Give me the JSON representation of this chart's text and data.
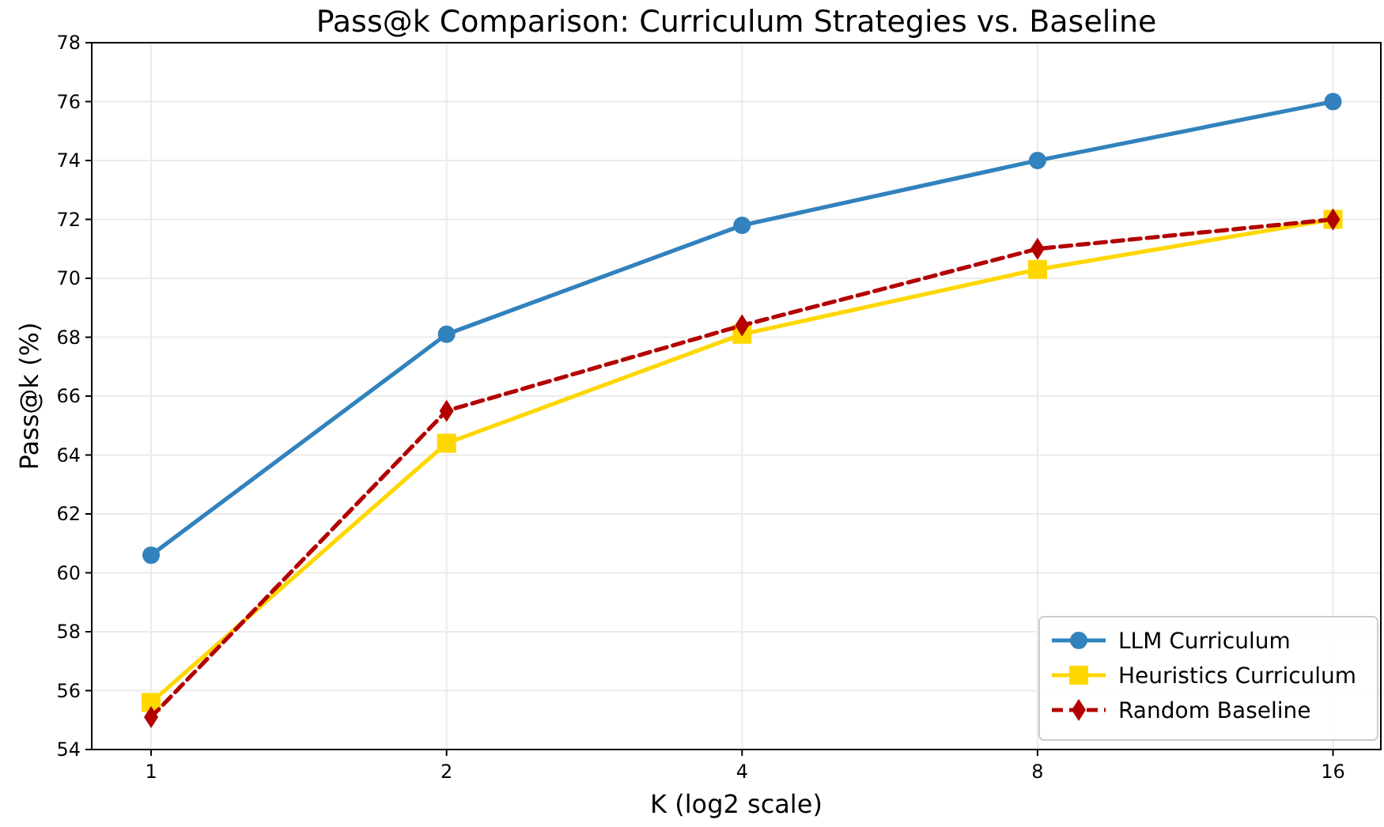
{
  "chart_data": {
    "type": "line",
    "title": "Pass@k Comparison: Curriculum Strategies vs. Baseline",
    "xlabel": "K (log2 scale)",
    "ylabel": "Pass@k (%)",
    "log": "x",
    "x": [
      1,
      2,
      4,
      8,
      16
    ],
    "xlim": [
      0.87,
      17.9
    ],
    "xticks": [
      1,
      2,
      4,
      8,
      16
    ],
    "ylim": [
      54,
      78
    ],
    "yticks": [
      54,
      56,
      58,
      60,
      62,
      64,
      66,
      68,
      70,
      72,
      74,
      76,
      78
    ],
    "grid": true,
    "legend": "bottom right",
    "series": [
      {
        "name": "LLM Curriculum",
        "color": "#3182bd",
        "values": [
          60.6,
          68.1,
          71.8,
          74.0,
          76.0
        ],
        "marker": "circle",
        "line_style": "solid"
      },
      {
        "name": "Heuristics Curriculum",
        "color": "#ffd700",
        "values": [
          55.6,
          64.4,
          68.1,
          70.3,
          72.0
        ],
        "marker": "square",
        "line_style": "solid"
      },
      {
        "name": "Random Baseline",
        "color": "#b30000",
        "values": [
          55.1,
          65.5,
          68.4,
          71.0,
          72.0
        ],
        "marker": "diamond",
        "line_style": "dashed"
      }
    ]
  }
}
